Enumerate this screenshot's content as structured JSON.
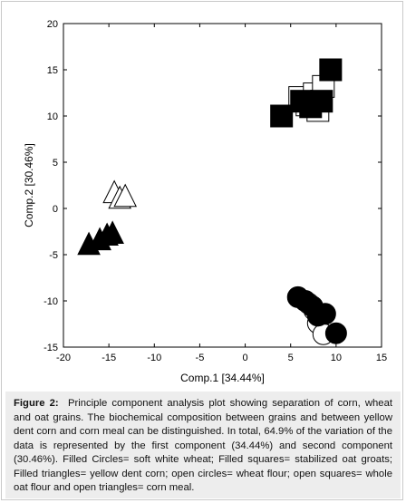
{
  "chart_data": {
    "type": "scatter",
    "title": "",
    "xlabel": "Comp.1 [34.44%]",
    "ylabel": "Comp.2 [30.46%]",
    "xlim": [
      -20,
      15
    ],
    "ylim": [
      -15,
      20
    ],
    "xticks": [
      -20,
      -15,
      -10,
      -5,
      0,
      5,
      10,
      15
    ],
    "yticks": [
      -15,
      -10,
      -5,
      0,
      5,
      10,
      15,
      20
    ],
    "grid": false,
    "legend": "none",
    "series": [
      {
        "group": "soft white wheat",
        "marker": "circle",
        "filled": true,
        "x": [
          5.8,
          6.6,
          7.4,
          8.0,
          8.8,
          10.0
        ],
        "y": [
          -9.6,
          -10.0,
          -10.6,
          -11.6,
          -11.4,
          -13.5
        ]
      },
      {
        "group": "wheat flour",
        "marker": "circle",
        "filled": false,
        "x": [
          7.0,
          7.6,
          8.0,
          8.6
        ],
        "y": [
          -10.3,
          -11.0,
          -12.4,
          -13.6
        ]
      },
      {
        "group": "stabilized oat groats",
        "marker": "square",
        "filled": true,
        "x": [
          4.0,
          6.2,
          7.2,
          8.4,
          9.4
        ],
        "y": [
          10.0,
          11.6,
          11.0,
          11.6,
          15.0
        ]
      },
      {
        "group": "whole oat flour",
        "marker": "square",
        "filled": false,
        "x": [
          6.0,
          6.8,
          7.6,
          8.0,
          8.6
        ],
        "y": [
          12.0,
          11.2,
          12.4,
          10.6,
          13.2
        ]
      },
      {
        "group": "yellow dent corn",
        "marker": "triangle",
        "filled": true,
        "x": [
          -17.2,
          -16.0,
          -15.2,
          -14.6
        ],
        "y": [
          -3.8,
          -3.3,
          -2.8,
          -2.6
        ]
      },
      {
        "group": "corn meal",
        "marker": "triangle",
        "filled": false,
        "x": [
          -14.4,
          -13.8,
          -13.2
        ],
        "y": [
          1.8,
          1.2,
          1.4
        ]
      }
    ]
  },
  "caption": {
    "label": "Figure 2:",
    "text": "Principle component analysis plot showing separation of corn, wheat and oat grains.  The biochemical composition between grains and between yellow dent corn and corn meal can be distinguished.  In total, 64.9% of the variation of the data is represented by the first component (34.44%) and second component (30.46%).  Filled Circles= soft white wheat; Filled squares= stabilized oat groats; Filled triangles= yellow dent corn; open circles= wheat flour; open squares= whole oat flour and open triangles= corn meal."
  },
  "colors": {
    "marker": "#000000",
    "caption_bg": "#ededed"
  }
}
